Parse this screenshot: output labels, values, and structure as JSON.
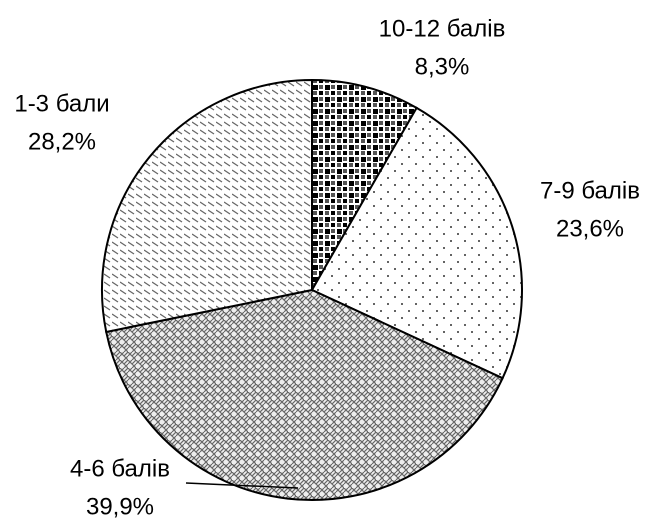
{
  "chart_data": {
    "type": "pie",
    "categories": [
      "10-12 балів",
      "7-9 балів",
      "4-6 балів",
      "1-3 бали"
    ],
    "values": [
      8.3,
      23.6,
      39.9,
      28.2
    ],
    "value_labels": [
      "8,3%",
      "23,6%",
      "39,9%",
      "28,2%"
    ]
  }
}
